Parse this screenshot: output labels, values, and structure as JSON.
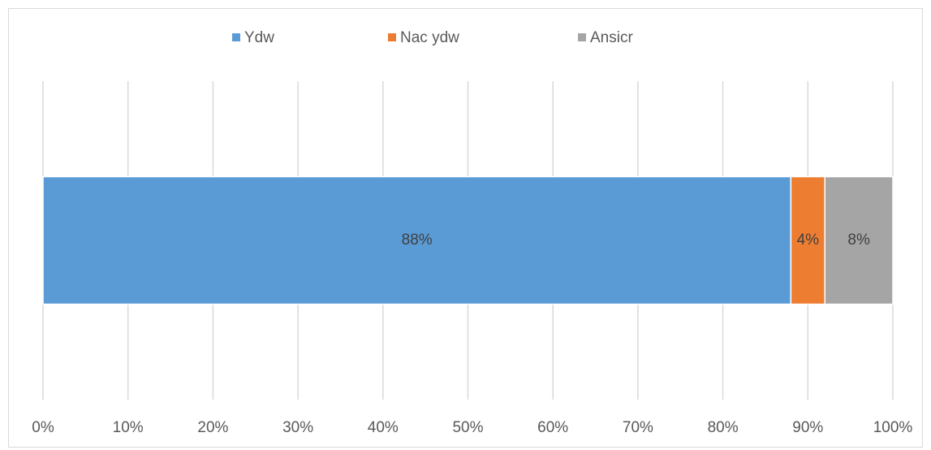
{
  "chart_data": {
    "type": "bar",
    "orientation": "horizontal",
    "stacked": true,
    "categories": [
      null
    ],
    "series": [
      {
        "name": "Ydw",
        "color": "#5b9bd5",
        "values": [
          88
        ],
        "value_labels": [
          "88%"
        ]
      },
      {
        "name": "Nac ydw",
        "color": "#ed7d31",
        "values": [
          4
        ],
        "value_labels": [
          "4%"
        ]
      },
      {
        "name": "Ansicr",
        "color": "#a5a5a5",
        "values": [
          8
        ],
        "value_labels": [
          "8%"
        ]
      }
    ],
    "xlim": [
      0,
      100
    ],
    "xticks": [
      {
        "value": 0,
        "label": "0%"
      },
      {
        "value": 10,
        "label": "10%"
      },
      {
        "value": 20,
        "label": "20%"
      },
      {
        "value": 30,
        "label": "30%"
      },
      {
        "value": 40,
        "label": "40%"
      },
      {
        "value": 50,
        "label": "50%"
      },
      {
        "value": 60,
        "label": "60%"
      },
      {
        "value": 70,
        "label": "70%"
      },
      {
        "value": 80,
        "label": "80%"
      },
      {
        "value": 90,
        "label": "90%"
      },
      {
        "value": 100,
        "label": "100%"
      }
    ],
    "grid": true,
    "legend": "top"
  }
}
